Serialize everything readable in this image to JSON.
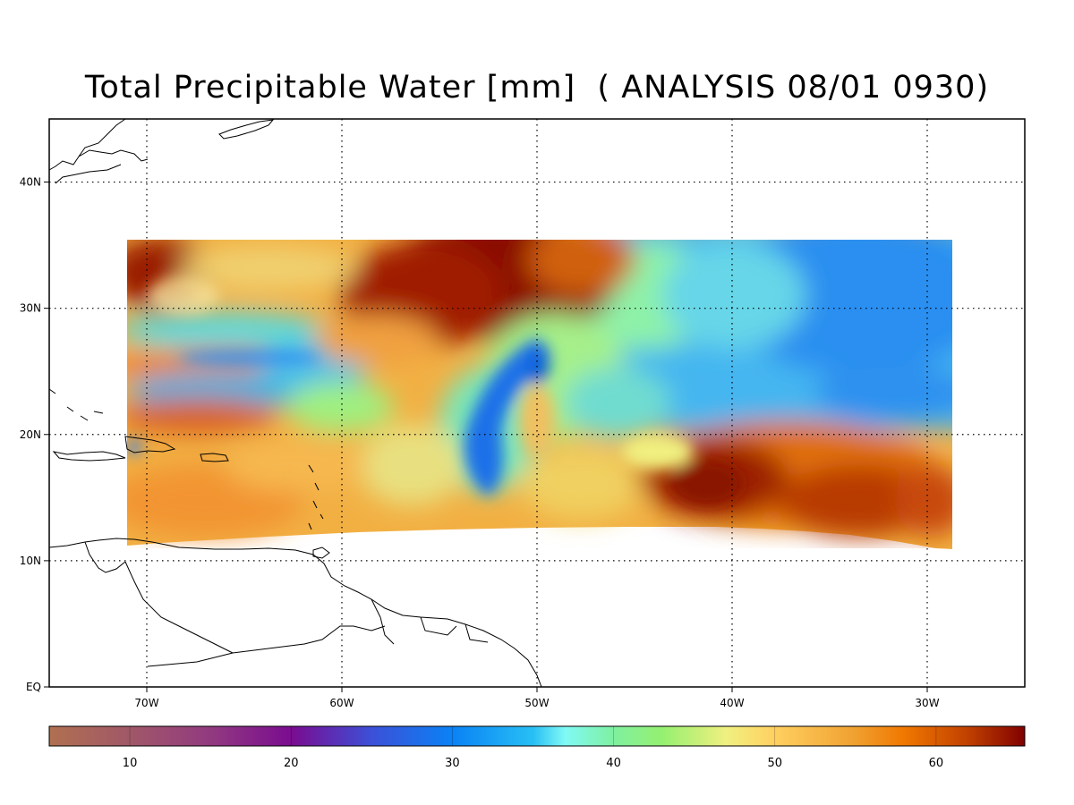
{
  "title": "Total Precipitable Water [mm]  ( ANALYSIS 08/01 0930)",
  "map": {
    "lon_range": [
      -75,
      -25
    ],
    "lat_range": [
      0,
      45
    ],
    "lon_ticks": [
      {
        "lon": -70,
        "label": "70W"
      },
      {
        "lon": -60,
        "label": "60W"
      },
      {
        "lon": -50,
        "label": "50W"
      },
      {
        "lon": -40,
        "label": "40W"
      },
      {
        "lon": -30,
        "label": "30W"
      }
    ],
    "lat_ticks": [
      {
        "lat": 0,
        "label": "EQ"
      },
      {
        "lat": 10,
        "label": "10N"
      },
      {
        "lat": 20,
        "label": "20N"
      },
      {
        "lat": 30,
        "label": "30N"
      },
      {
        "lat": 40,
        "label": "40N"
      }
    ],
    "grid_lons": [
      -70,
      -60,
      -50,
      -40,
      -30
    ],
    "grid_lats": [
      10,
      20,
      30,
      40
    ],
    "data_bounds": {
      "lon": [
        -71,
        -29
      ],
      "lat_north": 35.5
    },
    "features": [
      {
        "name": "north-region-dry-band",
        "lon": -67,
        "lat": 27,
        "value": 34
      },
      {
        "name": "moist-plume-core",
        "lon": -54,
        "lat": 32,
        "value": 65
      },
      {
        "name": "moist-blob-northwest",
        "lon": -70,
        "lat": 32,
        "value": 62
      },
      {
        "name": "dry-hook",
        "lon": -53,
        "lat": 19,
        "value": 30
      },
      {
        "name": "dry-northeast",
        "lon": -33,
        "lat": 29,
        "value": 28
      },
      {
        "name": "moist-east-core",
        "lon": -41,
        "lat": 16,
        "value": 63
      }
    ]
  },
  "colorbar": {
    "range": [
      5,
      65.5
    ],
    "ticks": [
      {
        "value": 10,
        "label": "10"
      },
      {
        "value": 20,
        "label": "20"
      },
      {
        "value": 30,
        "label": "30"
      },
      {
        "value": 40,
        "label": "40"
      },
      {
        "value": 50,
        "label": "50"
      },
      {
        "value": 60,
        "label": "60"
      }
    ],
    "stops": [
      {
        "value": 5,
        "color": "#b07050"
      },
      {
        "value": 10,
        "color": "#a05868"
      },
      {
        "value": 15,
        "color": "#923a80"
      },
      {
        "value": 20,
        "color": "#7a0c90"
      },
      {
        "value": 25,
        "color": "#3c50d8"
      },
      {
        "value": 30,
        "color": "#0a82f5"
      },
      {
        "value": 35,
        "color": "#28bff5"
      },
      {
        "value": 37,
        "color": "#80faf5"
      },
      {
        "value": 40,
        "color": "#7ff0a0"
      },
      {
        "value": 43,
        "color": "#95f070"
      },
      {
        "value": 47,
        "color": "#f0f080"
      },
      {
        "value": 50,
        "color": "#ffd060"
      },
      {
        "value": 55,
        "color": "#f0a030"
      },
      {
        "value": 58,
        "color": "#f07800"
      },
      {
        "value": 62,
        "color": "#c04000"
      },
      {
        "value": 65.5,
        "color": "#800000"
      }
    ]
  }
}
